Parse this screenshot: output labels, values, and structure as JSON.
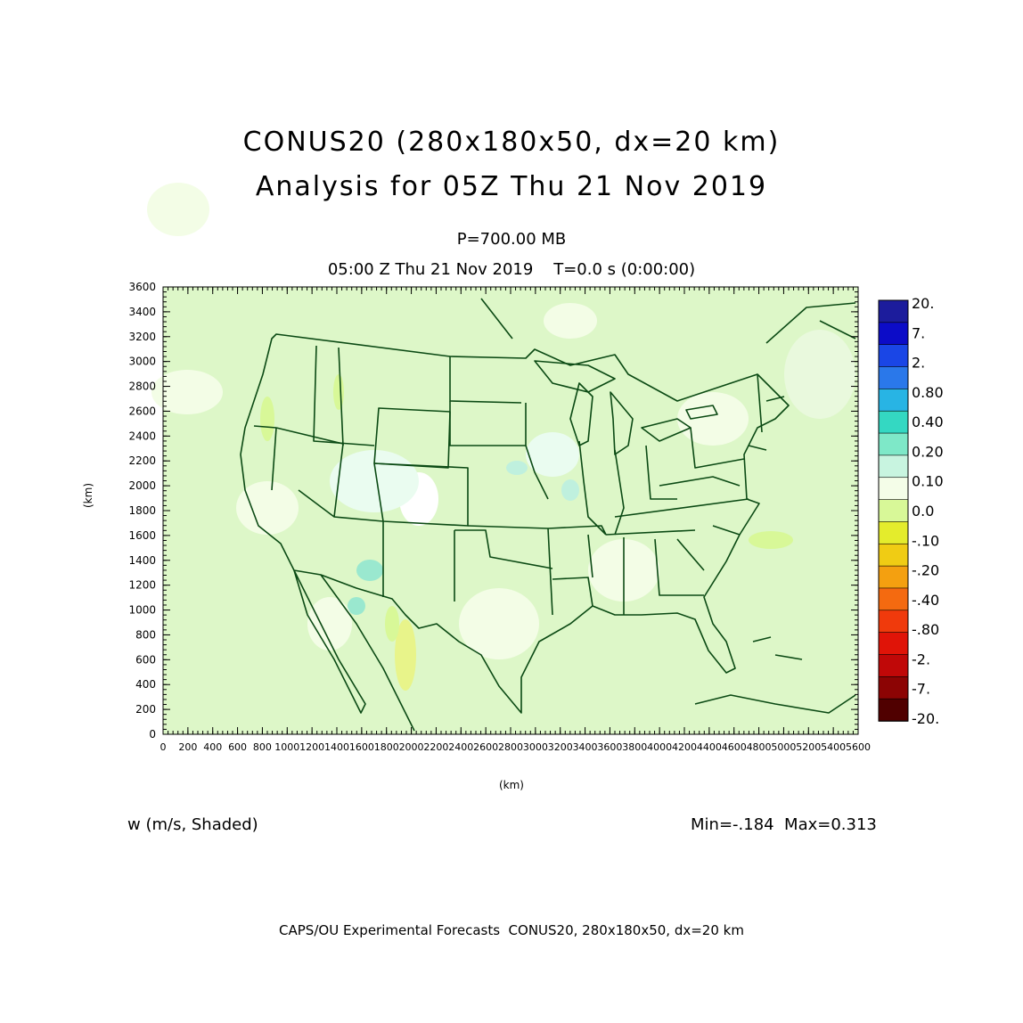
{
  "title": {
    "line1": "CONUS20 (280x180x50, dx=20 km)",
    "line2": "Analysis for 05Z Thu 21 Nov 2019"
  },
  "subtitle": {
    "level": "P=700.00 MB",
    "time": "05:00 Z Thu 21 Nov 2019    T=0.0 s (0:00:00)"
  },
  "axes": {
    "x_label": "(km)",
    "y_label": "(km)",
    "x_ticks": [
      "0",
      "200",
      "400",
      "600",
      "800",
      "1000",
      "1200",
      "1400",
      "1600",
      "1800",
      "2000",
      "2200",
      "2400",
      "2600",
      "2800",
      "3000",
      "3200",
      "3400",
      "3600",
      "3800",
      "4000",
      "4200",
      "4400",
      "4600",
      "4800",
      "5000",
      "5200",
      "5400",
      "5600"
    ],
    "y_ticks": [
      "0",
      "200",
      "400",
      "600",
      "800",
      "1000",
      "1200",
      "1400",
      "1600",
      "1800",
      "2000",
      "2200",
      "2400",
      "2600",
      "2800",
      "3000",
      "3200",
      "3400",
      "3600"
    ],
    "x_range": [
      0,
      5600
    ],
    "y_range": [
      0,
      3600
    ]
  },
  "colorbar": {
    "labels": [
      "20.",
      "7.",
      "2.",
      "0.80",
      "0.40",
      "0.20",
      "0.10",
      "0.0",
      "-.10",
      "-.20",
      "-.40",
      "-.80",
      "-2.",
      "-7.",
      "-20."
    ],
    "colors": [
      "#1c1c9c",
      "#0c0cc8",
      "#1a46e6",
      "#2a78ea",
      "#28b4e4",
      "#34d8c2",
      "#7ee8c8",
      "#c8f4e0",
      "#f4fde8",
      "#d8f898",
      "#e4ec2c",
      "#f0cc14",
      "#f4a010",
      "#f46a10",
      "#f03a0c",
      "#e01408",
      "#c00808",
      "#8c0404",
      "#500000"
    ]
  },
  "field_label": "w (m/s, Shaded)",
  "minmax": "Min=-.184  Max=0.313",
  "footer": "CAPS/OU Experimental Forecasts  CONUS20, 280x180x50, dx=20 km",
  "map": {
    "background_color": "#ddf7c8",
    "boundary_color": "#0b4a14"
  }
}
